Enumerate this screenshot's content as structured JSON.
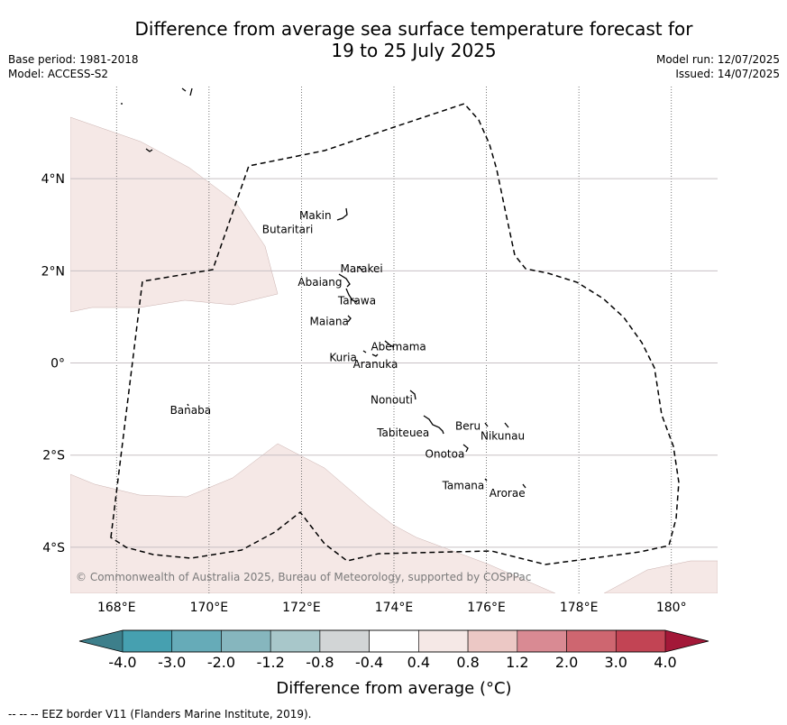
{
  "title_line1": "Difference from average sea surface temperature forecast for",
  "title_line2": "19 to 25 July 2025",
  "base_period": "Base period: 1981-2018",
  "model": "Model: ACCESS-S2",
  "model_run": "Model run: 12/07/2025",
  "issued": "Issued: 14/07/2025",
  "copyright": "© Commonwealth of Australia 2025, Bureau of Meteorology, supported by COSPPac",
  "footnote": "--  --  -- EEZ border V11 (Flanders Marine Institute, 2019).",
  "map": {
    "lon_range": [
      167,
      181
    ],
    "lat_range": [
      -5,
      6
    ],
    "lon_ticks": [
      {
        "value": 168,
        "label": "168°E"
      },
      {
        "value": 170,
        "label": "170°E"
      },
      {
        "value": 172,
        "label": "172°E"
      },
      {
        "value": 174,
        "label": "174°E"
      },
      {
        "value": 176,
        "label": "176°E"
      },
      {
        "value": 178,
        "label": "178°E"
      },
      {
        "value": 180,
        "label": "180°"
      }
    ],
    "lat_ticks": [
      {
        "value": 4,
        "label": "4°N"
      },
      {
        "value": 2,
        "label": "2°N"
      },
      {
        "value": 0,
        "label": "0°"
      },
      {
        "value": -2,
        "label": "2°S"
      },
      {
        "value": -4,
        "label": "4°S"
      }
    ],
    "anomaly_class": "0.4 to 0.8",
    "anomaly_color": "#f5e8e6",
    "places": [
      {
        "name": "Makin",
        "lon": 172.3,
        "lat": 3.2
      },
      {
        "name": "Butaritari",
        "lon": 171.7,
        "lat": 2.9
      },
      {
        "name": "Marakei",
        "lon": 173.3,
        "lat": 2.05
      },
      {
        "name": "Abaiang",
        "lon": 172.4,
        "lat": 1.75
      },
      {
        "name": "Tarawa",
        "lon": 173.2,
        "lat": 1.35
      },
      {
        "name": "Maiana",
        "lon": 172.6,
        "lat": 0.9
      },
      {
        "name": "Abemama",
        "lon": 174.1,
        "lat": 0.35
      },
      {
        "name": "Kuria",
        "lon": 172.9,
        "lat": 0.12
      },
      {
        "name": "Aranuka",
        "lon": 173.6,
        "lat": -0.03
      },
      {
        "name": "Banaba",
        "lon": 169.6,
        "lat": -1.03
      },
      {
        "name": "Nonouti",
        "lon": 173.95,
        "lat": -0.8
      },
      {
        "name": "Beru",
        "lon": 175.6,
        "lat": -1.37
      },
      {
        "name": "Tabiteuea",
        "lon": 174.2,
        "lat": -1.52
      },
      {
        "name": "Nikunau",
        "lon": 176.35,
        "lat": -1.58
      },
      {
        "name": "Onotoa",
        "lon": 175.1,
        "lat": -1.98
      },
      {
        "name": "Tamana",
        "lon": 175.5,
        "lat": -2.66
      },
      {
        "name": "Arorae",
        "lon": 176.45,
        "lat": -2.83
      }
    ]
  },
  "colorbar": {
    "title": "Difference from average (°C)",
    "ticks": [
      "-4.0",
      "-3.0",
      "-2.0",
      "-1.2",
      "-0.8",
      "-0.4",
      "0.4",
      "0.8",
      "1.2",
      "2.0",
      "3.0",
      "4.0"
    ],
    "under_color": "#3d7f8b",
    "over_color": "#a31838",
    "colors": [
      "#46a0b0",
      "#66abb8",
      "#86b6be",
      "#a8c7ca",
      "#d2d5d6",
      "#ffffff",
      "#f5e8e6",
      "#ecc8c5",
      "#d98a93",
      "#ce6670",
      "#c24454"
    ]
  }
}
